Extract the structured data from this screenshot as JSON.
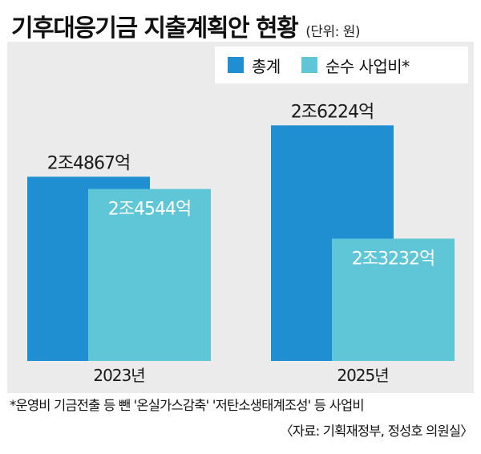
{
  "header": {
    "title": "기후대응기금 지출계획안 현황",
    "unit": "(단위: 원)"
  },
  "legend": {
    "items": [
      {
        "label": "총계",
        "color": "#1f8fd2"
      },
      {
        "label": "순수 사업비*",
        "color": "#5ec6d6"
      }
    ]
  },
  "chart_data": {
    "type": "bar",
    "title": "기후대응기금 지출계획안 현황",
    "unit": "(단위: 원)",
    "categories": [
      "2023년",
      "2025년"
    ],
    "series": [
      {
        "name": "총계",
        "color": "#1f8fd2",
        "values": [
          2.4867,
          2.6224
        ],
        "labels": [
          "2조4867억",
          "2조6224억"
        ]
      },
      {
        "name": "순수 사업비*",
        "color": "#5ec6d6",
        "values": [
          2.4544,
          2.3232
        ],
        "labels": [
          "2조4544억",
          "2조3232억"
        ]
      }
    ],
    "value_unit": "조 원",
    "grid": false,
    "legend_position": "top-right"
  },
  "footnote": "*운영비 기금전출 등 뺀 '온실가스감축' '저탄소생태계조성' 등 사업비",
  "source": "〈자료: 기획재정부, 정성호 의원실〉"
}
